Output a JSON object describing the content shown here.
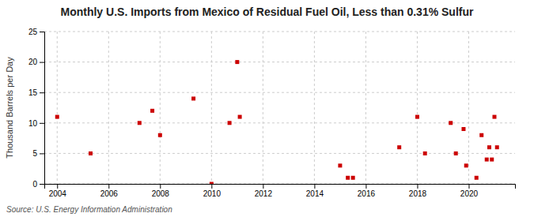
{
  "chart_data": {
    "type": "scatter",
    "title": "Monthly U.S. Imports from Mexico of Residual Fuel Oil, Less than 0.31% Sulfur",
    "ylabel": "Thousand Barrels per Day",
    "source": "Source: U.S. Energy Information Administration",
    "x": [
      2004.0,
      2005.3,
      2007.2,
      2007.7,
      2008.0,
      2009.3,
      2010.0,
      2010.7,
      2011.0,
      2011.1,
      2015.0,
      2015.3,
      2015.5,
      2017.3,
      2018.0,
      2018.3,
      2019.3,
      2019.5,
      2019.8,
      2019.9,
      2020.3,
      2020.5,
      2020.7,
      2020.8,
      2020.9,
      2021.0,
      2021.1
    ],
    "values": [
      11,
      5,
      10,
      12,
      8,
      14,
      0,
      10,
      20,
      11,
      3,
      1,
      1,
      6,
      11,
      5,
      10,
      5,
      9,
      3,
      1,
      8,
      4,
      6,
      4,
      11,
      6
    ],
    "color": "#cc0000",
    "marker": "square",
    "xlim": [
      2003.5,
      2021.8
    ],
    "ylim": [
      0,
      25
    ],
    "xticks": [
      2004,
      2006,
      2008,
      2010,
      2012,
      2014,
      2016,
      2018,
      2020
    ],
    "yticks": [
      0,
      5,
      10,
      15,
      20,
      25
    ],
    "grid": true
  }
}
